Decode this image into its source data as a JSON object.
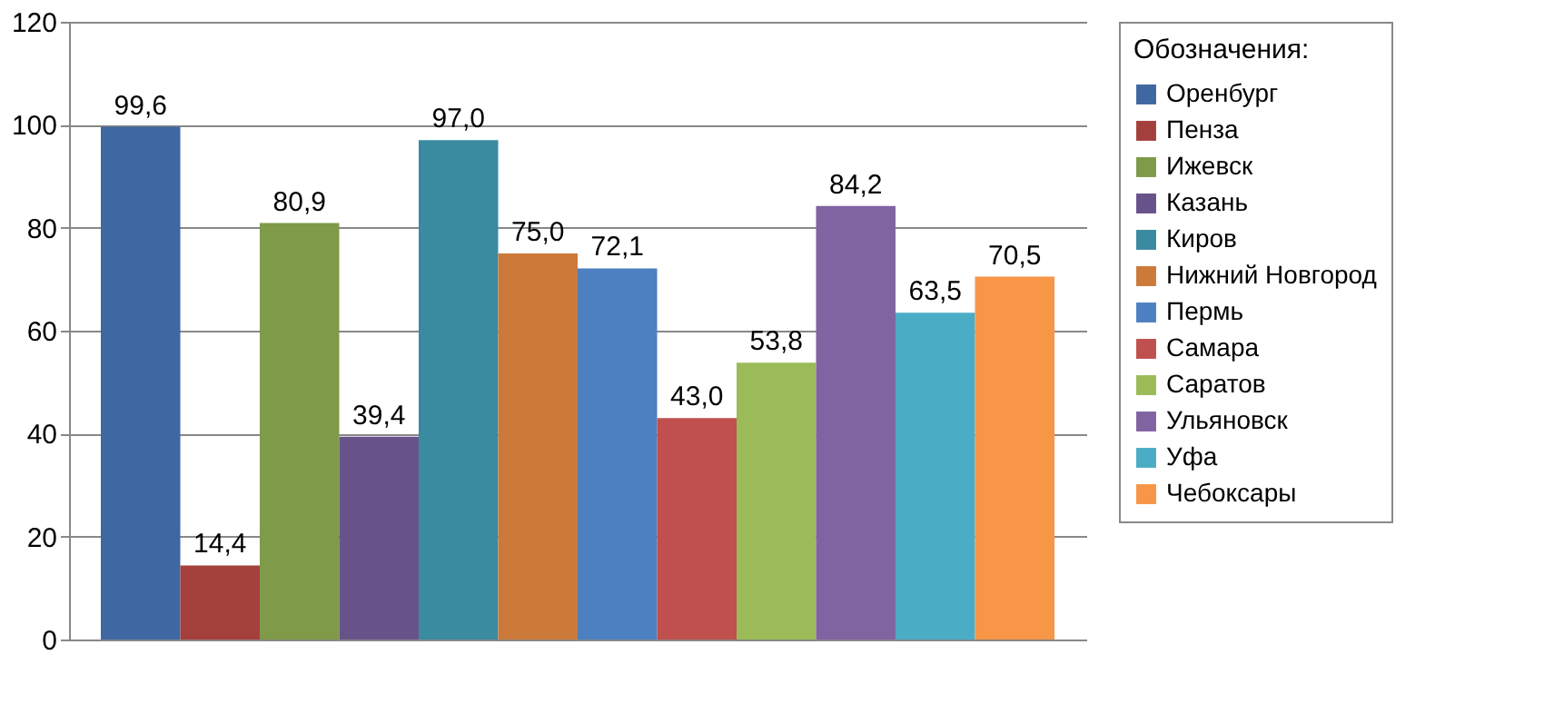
{
  "chart_data": {
    "type": "bar",
    "categories": [
      null
    ],
    "legend_title": "Обозначения:",
    "legend": "right",
    "grid": "y",
    "ylim": [
      0,
      120
    ],
    "yticks": [
      0,
      20,
      40,
      60,
      80,
      100,
      120
    ],
    "series": [
      {
        "name": "Оренбург",
        "color": "#3f67a2",
        "values": [
          99.6
        ],
        "value_labels": [
          "99,6"
        ]
      },
      {
        "name": "Пенза",
        "color": "#a4403c",
        "values": [
          14.4
        ],
        "value_labels": [
          "14,4"
        ]
      },
      {
        "name": "Ижевск",
        "color": "#7f9a48",
        "values": [
          80.9
        ],
        "value_labels": [
          "80,9"
        ]
      },
      {
        "name": "Казань",
        "color": "#68528a",
        "values": [
          39.4
        ],
        "value_labels": [
          "39,4"
        ]
      },
      {
        "name": "Киров",
        "color": "#3a8aa0",
        "values": [
          97.0
        ],
        "value_labels": [
          "97,0"
        ]
      },
      {
        "name": "Нижний Новгород",
        "color": "#cc7a3a",
        "values": [
          75.0
        ],
        "value_labels": [
          "75,0"
        ]
      },
      {
        "name": "Пермь",
        "color": "#4d80c0",
        "values": [
          72.1
        ],
        "value_labels": [
          "72,1"
        ]
      },
      {
        "name": "Самара",
        "color": "#c0504d",
        "values": [
          43.0
        ],
        "value_labels": [
          "43,0"
        ]
      },
      {
        "name": "Саратов",
        "color": "#9bbb59",
        "values": [
          53.8
        ],
        "value_labels": [
          "53,8"
        ]
      },
      {
        "name": "Ульяновск",
        "color": "#8064a2",
        "values": [
          84.2
        ],
        "value_labels": [
          "84,2"
        ]
      },
      {
        "name": "Уфа",
        "color": "#4bacc6",
        "values": [
          63.5
        ],
        "value_labels": [
          "63,5"
        ]
      },
      {
        "name": "Чебоксары",
        "color": "#f79646",
        "values": [
          70.5
        ],
        "value_labels": [
          "70,5"
        ]
      }
    ]
  }
}
